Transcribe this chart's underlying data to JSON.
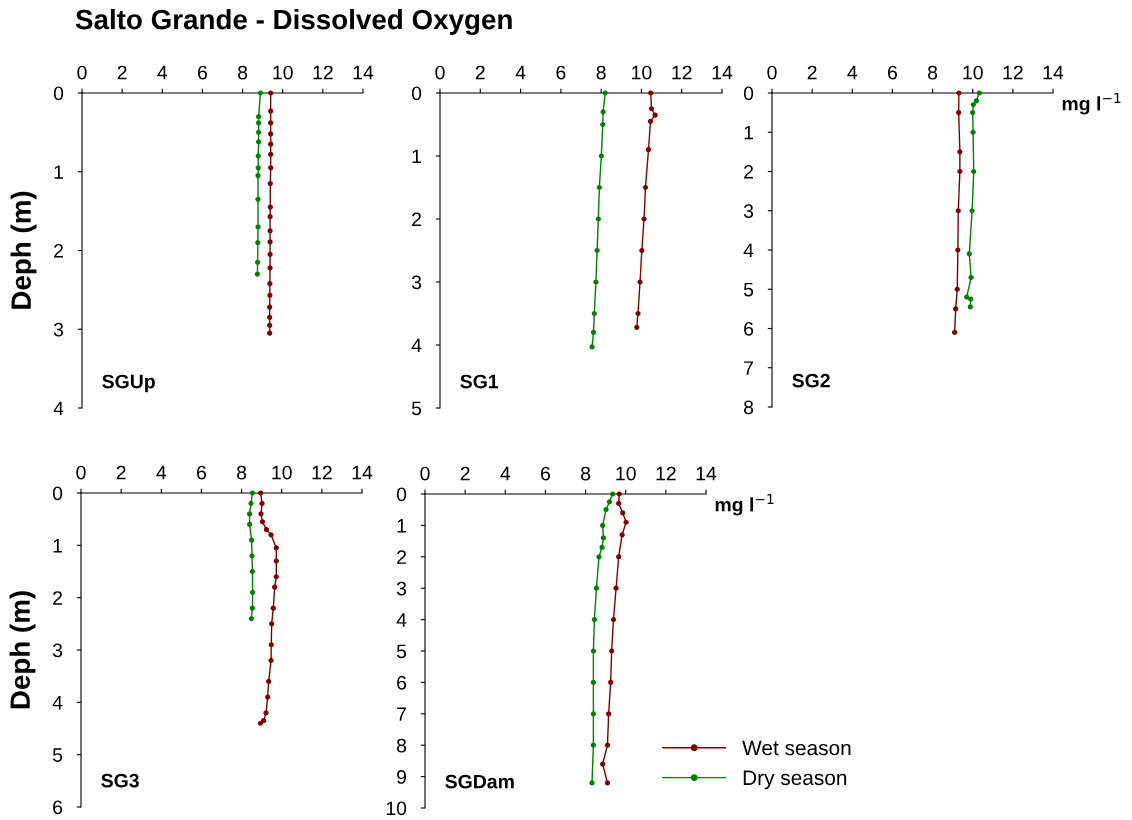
{
  "chart_data": [
    {
      "type": "line",
      "orientation": "horizontal",
      "title": "Salto Grande - Dissolved Oxygen",
      "ylabel": "Deph (m)",
      "annotations": [
        "SGUp"
      ],
      "xlim": [
        0,
        14
      ],
      "xticks": [
        0,
        2,
        4,
        6,
        8,
        10,
        12,
        14
      ],
      "ylim": [
        4,
        0
      ],
      "yticks": [
        0,
        1,
        2,
        3,
        4
      ],
      "marker": "circle",
      "line_style": "solid",
      "grid": false,
      "legend": false,
      "series": [
        {
          "color": "#7f0000",
          "values": [
            9.4,
            9.4,
            9.4,
            9.4,
            9.4,
            9.4,
            9.4,
            9.38,
            9.38,
            9.37,
            9.37,
            9.37,
            9.37,
            9.37,
            9.36,
            9.36,
            9.35,
            9.35,
            9.35,
            9.35
          ],
          "x": [
            0,
            0.23,
            0.38,
            0.52,
            0.65,
            0.78,
            0.95,
            1.15,
            1.45,
            1.57,
            1.75,
            1.89,
            2.05,
            2.22,
            2.42,
            2.57,
            2.72,
            2.85,
            2.95,
            3.05
          ]
        },
        {
          "color": "#008000",
          "values": [
            8.89,
            8.8,
            8.8,
            8.8,
            8.8,
            8.78,
            8.78,
            8.77,
            8.77,
            8.77,
            8.76,
            8.75,
            8.74
          ],
          "x": [
            0,
            0.3,
            0.38,
            0.5,
            0.62,
            0.8,
            0.95,
            1.05,
            1.35,
            1.7,
            1.9,
            2.15,
            2.3
          ]
        }
      ]
    },
    {
      "type": "line",
      "orientation": "horizontal",
      "annotations": [
        "SG1"
      ],
      "xlim": [
        0,
        14
      ],
      "xticks": [
        0,
        2,
        4,
        6,
        8,
        10,
        12,
        14
      ],
      "ylim": [
        5,
        0
      ],
      "yticks": [
        0,
        1,
        2,
        3,
        4,
        5
      ],
      "marker": "circle",
      "line_style": "solid",
      "grid": false,
      "legend": false,
      "series": [
        {
          "color": "#7f0000",
          "values": [
            10.46,
            10.5,
            10.68,
            10.45,
            10.35,
            10.2,
            10.13,
            10.02,
            9.93,
            9.83,
            9.77
          ],
          "x": [
            0,
            0.25,
            0.35,
            0.45,
            0.9,
            1.5,
            2.0,
            2.5,
            3.0,
            3.5,
            3.72
          ]
        },
        {
          "color": "#008000",
          "values": [
            8.2,
            8.1,
            8.08,
            8.01,
            7.91,
            7.86,
            7.8,
            7.74,
            7.66,
            7.62,
            7.55
          ],
          "x": [
            0,
            0.3,
            0.5,
            1.0,
            1.5,
            2.0,
            2.5,
            3.0,
            3.5,
            3.8,
            4.03
          ]
        }
      ]
    },
    {
      "type": "line",
      "orientation": "horizontal",
      "annotations": [
        "SG2",
        "mg l$^{−1}$"
      ],
      "xlim": [
        0,
        14
      ],
      "xticks": [
        0,
        2,
        4,
        6,
        8,
        10,
        12,
        14
      ],
      "ylim": [
        8,
        0
      ],
      "yticks": [
        0,
        1,
        2,
        3,
        4,
        5,
        6,
        7,
        8
      ],
      "marker": "circle",
      "line_style": "solid",
      "grid": false,
      "legend": false,
      "series": [
        {
          "color": "#7f0000",
          "values": [
            9.31,
            9.3,
            9.36,
            9.36,
            9.28,
            9.26,
            9.23,
            9.15,
            9.1
          ],
          "x": [
            0,
            0.5,
            1.5,
            2.0,
            3.0,
            4.0,
            5.0,
            5.5,
            6.1
          ]
        },
        {
          "color": "#008000",
          "values": [
            10.33,
            10.18,
            10.03,
            10.0,
            10.02,
            10.05,
            9.97,
            9.83,
            9.92,
            9.7,
            9.9,
            9.88
          ],
          "x": [
            0,
            0.2,
            0.3,
            0.5,
            1.0,
            2.0,
            3.0,
            4.1,
            4.7,
            5.2,
            5.25,
            5.45
          ]
        }
      ]
    },
    {
      "type": "line",
      "orientation": "horizontal",
      "ylabel": "Deph (m)",
      "annotations": [
        "SG3"
      ],
      "xlim": [
        0,
        14
      ],
      "xticks": [
        0,
        2,
        4,
        6,
        8,
        10,
        12,
        14
      ],
      "ylim": [
        6,
        0
      ],
      "yticks": [
        0,
        1,
        2,
        3,
        4,
        5,
        6
      ],
      "marker": "circle",
      "line_style": "solid",
      "grid": false,
      "legend": false,
      "series": [
        {
          "color": "#7f0000",
          "values": [
            8.95,
            9.02,
            8.97,
            9.04,
            9.24,
            9.47,
            9.73,
            9.73,
            9.73,
            9.65,
            9.58,
            9.5,
            9.48,
            9.47,
            9.35,
            9.3,
            9.22,
            9.1,
            8.94
          ],
          "x": [
            0,
            0.2,
            0.4,
            0.55,
            0.7,
            0.8,
            1.05,
            1.3,
            1.6,
            1.8,
            2.2,
            2.5,
            2.9,
            3.2,
            3.6,
            3.9,
            4.2,
            4.35,
            4.4
          ]
        },
        {
          "color": "#008000",
          "values": [
            8.54,
            8.47,
            8.4,
            8.4,
            8.5,
            8.52,
            8.54,
            8.55,
            8.54,
            8.49
          ],
          "x": [
            0,
            0.2,
            0.4,
            0.6,
            0.9,
            1.2,
            1.5,
            1.9,
            2.2,
            2.4
          ]
        }
      ]
    },
    {
      "type": "line",
      "orientation": "horizontal",
      "annotations": [
        "SGDam",
        "mg l$^{−1}$"
      ],
      "xlim": [
        0,
        14
      ],
      "xticks": [
        0,
        2,
        4,
        6,
        8,
        10,
        12,
        14
      ],
      "ylim": [
        10,
        0
      ],
      "yticks": [
        0,
        1,
        2,
        3,
        4,
        5,
        6,
        7,
        8,
        9,
        10
      ],
      "marker": "circle",
      "line_style": "solid",
      "grid": false,
      "legend": "bottom right",
      "series": [
        {
          "name": "Wet season",
          "color": "#7f0000",
          "values": [
            9.68,
            9.65,
            9.85,
            10.02,
            9.82,
            9.65,
            9.52,
            9.39,
            9.3,
            9.25,
            9.15,
            9.09,
            8.85,
            9.09
          ],
          "x": [
            0,
            0.3,
            0.6,
            0.9,
            1.3,
            2,
            3,
            4,
            5,
            6,
            7,
            8,
            8.6,
            9.2
          ]
        },
        {
          "name": "Dry season",
          "color": "#008000",
          "values": [
            9.35,
            9.19,
            9.02,
            8.85,
            8.89,
            8.82,
            8.67,
            8.54,
            8.44,
            8.39,
            8.39,
            8.39,
            8.39,
            8.32
          ],
          "x": [
            0,
            0.25,
            0.5,
            1,
            1.4,
            1.7,
            2,
            3,
            4,
            5,
            6,
            7,
            8,
            9.2
          ]
        }
      ]
    }
  ]
}
